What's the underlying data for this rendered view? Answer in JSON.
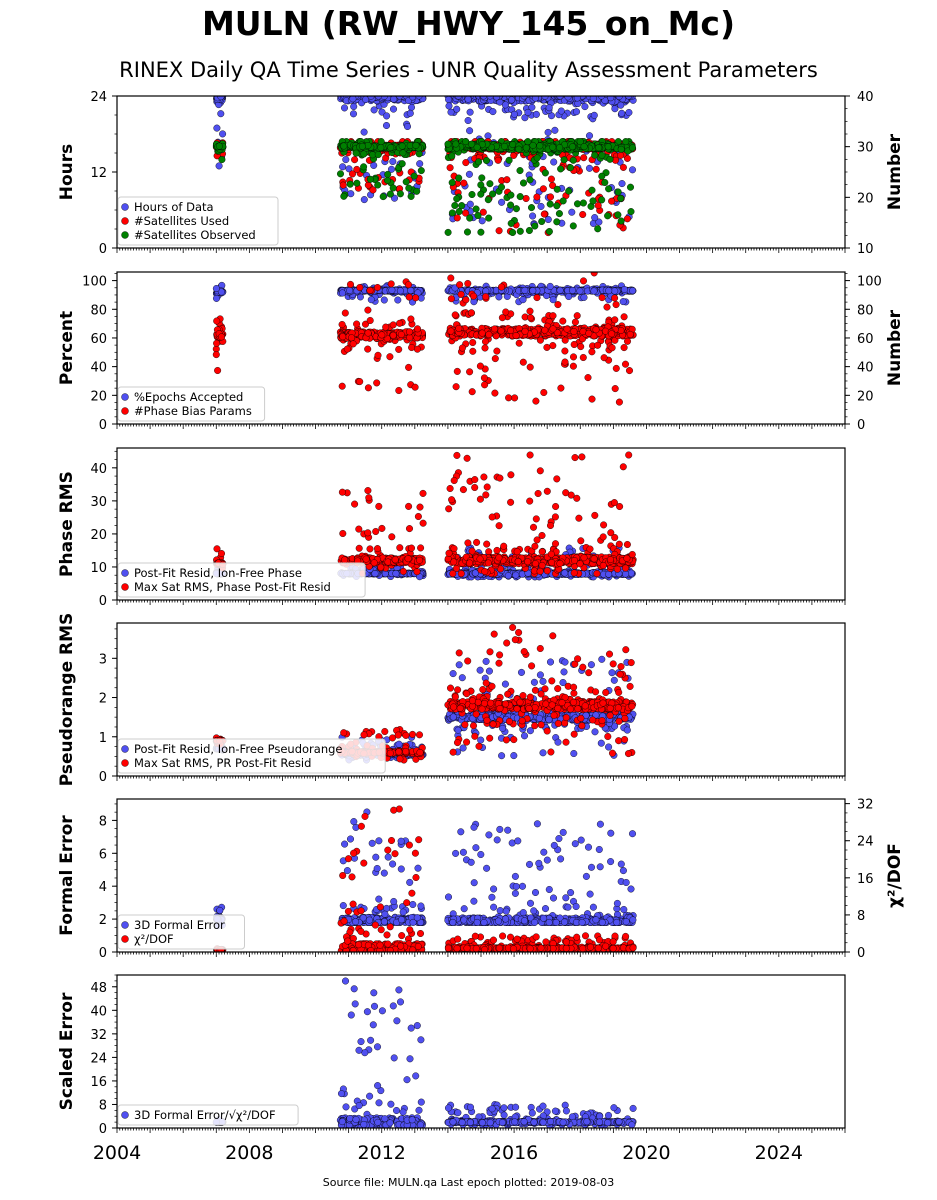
{
  "header": {
    "title": "MULN (RW_HWY_145_on_Mc)",
    "subtitle": "RINEX Daily QA Time Series - UNR Quality Assessment Parameters"
  },
  "footer": {
    "source_note": "Source file: MULN.qa Last epoch plotted: 2019-08-03"
  },
  "colors": {
    "blue": "#5050f0",
    "red": "#ff0000",
    "green": "#008000"
  },
  "chart_data": [
    {
      "type": "scatter",
      "panel": "hours",
      "ylabel": "Hours",
      "y2label": "Number",
      "ylim": [
        0,
        24
      ],
      "yticks": [
        0,
        12,
        24
      ],
      "y2lim": [
        10,
        40
      ],
      "y2ticks": [
        10,
        20,
        30,
        40
      ],
      "xlim": [
        2004,
        2026
      ],
      "legend_position": "lower-left",
      "series": [
        {
          "name": "Hours of Data",
          "color": "#5050f0",
          "axis": "left",
          "segments": [
            {
              "x": [
                2007.0,
                2007.2
              ],
              "y": [
                12,
                24
              ],
              "mode": 23.6
            },
            {
              "x": [
                2010.75,
                2013.25
              ],
              "y": [
                5.5,
                24
              ],
              "mode": 23.8
            },
            {
              "x": [
                2014.0,
                2019.6
              ],
              "y": [
                3.5,
                24
              ],
              "mode": 23.8
            }
          ]
        },
        {
          "name": "#Satellites Used",
          "color": "#ff0000",
          "axis": "right",
          "segments": [
            {
              "x": [
                2007.0,
                2007.2
              ],
              "y": [
                28,
                31
              ],
              "mode": 30
            },
            {
              "x": [
                2010.75,
                2013.25
              ],
              "y": [
                21,
                31
              ],
              "mode": 30
            },
            {
              "x": [
                2014.0,
                2019.6
              ],
              "y": [
                13,
                31
              ],
              "mode": 30
            }
          ]
        },
        {
          "name": "#Satellites Observed",
          "color": "#008000",
          "axis": "right",
          "segments": [
            {
              "x": [
                2007.0,
                2007.2
              ],
              "y": [
                27,
                31
              ],
              "mode": 30
            },
            {
              "x": [
                2010.75,
                2013.25
              ],
              "y": [
                20,
                31
              ],
              "mode": 30
            },
            {
              "x": [
                2014.0,
                2019.6
              ],
              "y": [
                13,
                31
              ],
              "mode": 30
            }
          ]
        }
      ]
    },
    {
      "type": "scatter",
      "panel": "percent",
      "ylabel": "Percent",
      "y2label": "Number",
      "ylim": [
        0,
        106
      ],
      "yticks": [
        0,
        20,
        40,
        60,
        80,
        100
      ],
      "y2lim": [
        0,
        106
      ],
      "y2ticks": [
        0,
        20,
        40,
        60,
        80,
        100
      ],
      "xlim": [
        2004,
        2026
      ],
      "legend_position": "lower-left",
      "series": [
        {
          "name": "%Epochs Accepted",
          "color": "#5050f0",
          "axis": "left",
          "segments": [
            {
              "x": [
                2007.0,
                2007.2
              ],
              "y": [
                86,
                97
              ],
              "mode": 92
            },
            {
              "x": [
                2010.75,
                2013.25
              ],
              "y": [
                85,
                97
              ],
              "mode": 93
            },
            {
              "x": [
                2014.0,
                2019.6
              ],
              "y": [
                85,
                97
              ],
              "mode": 93
            }
          ]
        },
        {
          "name": "#Phase Bias Params",
          "color": "#ff0000",
          "axis": "right",
          "segments": [
            {
              "x": [
                2007.0,
                2007.2
              ],
              "y": [
                35,
                80
              ],
              "mode": 62
            },
            {
              "x": [
                2010.75,
                2013.25
              ],
              "y": [
                22,
                100
              ],
              "mode": 62
            },
            {
              "x": [
                2014.0,
                2019.6
              ],
              "y": [
                15,
                106
              ],
              "mode": 64
            }
          ]
        }
      ]
    },
    {
      "type": "scatter",
      "panel": "phase-rms",
      "ylabel": "Phase RMS",
      "ylim": [
        0,
        46
      ],
      "yticks": [
        0,
        10,
        20,
        30,
        40
      ],
      "xlim": [
        2004,
        2026
      ],
      "legend_position": "lower-left",
      "series": [
        {
          "name": "Post-Fit Resid, Ion-Free Phase",
          "color": "#5050f0",
          "axis": "left",
          "segments": [
            {
              "x": [
                2007.0,
                2007.2
              ],
              "y": [
                7,
                10
              ],
              "mode": 8
            },
            {
              "x": [
                2010.75,
                2013.25
              ],
              "y": [
                7,
                10
              ],
              "mode": 8
            },
            {
              "x": [
                2014.0,
                2019.6
              ],
              "y": [
                7,
                16
              ],
              "mode": 8
            }
          ]
        },
        {
          "name": "Max Sat RMS, Phase Post-Fit Resid",
          "color": "#ff0000",
          "axis": "left",
          "segments": [
            {
              "x": [
                2007.0,
                2007.2
              ],
              "y": [
                8,
                16
              ],
              "mode": 11
            },
            {
              "x": [
                2010.75,
                2013.25
              ],
              "y": [
                8,
                34
              ],
              "mode": 12
            },
            {
              "x": [
                2014.0,
                2019.6
              ],
              "y": [
                8,
                44
              ],
              "mode": 12
            }
          ]
        }
      ]
    },
    {
      "type": "scatter",
      "panel": "pseudorange-rms",
      "ylabel": "Pseudorange RMS",
      "ylim": [
        0,
        3.9
      ],
      "yticks": [
        0,
        1,
        2,
        3
      ],
      "xlim": [
        2004,
        2026
      ],
      "legend_position": "lower-left",
      "series": [
        {
          "name": "Post-Fit Resid, Ion-Free Pseudorange",
          "color": "#5050f0",
          "axis": "left",
          "segments": [
            {
              "x": [
                2007.0,
                2007.2
              ],
              "y": [
                0.5,
                0.9
              ],
              "mode": 0.7
            },
            {
              "x": [
                2010.75,
                2013.25
              ],
              "y": [
                0.4,
                1.0
              ],
              "mode": 0.55
            },
            {
              "x": [
                2014.0,
                2019.6
              ],
              "y": [
                0.5,
                3.0
              ],
              "mode": 1.5
            }
          ]
        },
        {
          "name": "Max Sat RMS, PR Post-Fit Resid",
          "color": "#ff0000",
          "axis": "left",
          "segments": [
            {
              "x": [
                2007.0,
                2007.2
              ],
              "y": [
                0.8,
                1.0
              ],
              "mode": 0.9
            },
            {
              "x": [
                2010.75,
                2013.25
              ],
              "y": [
                0.4,
                1.2
              ],
              "mode": 0.6
            },
            {
              "x": [
                2014.0,
                2019.6
              ],
              "y": [
                0.5,
                3.8
              ],
              "mode": 1.8
            }
          ]
        }
      ]
    },
    {
      "type": "scatter",
      "panel": "formal-error",
      "ylabel": "Formal Error",
      "y2label": "χ²/DOF",
      "ylim": [
        0,
        9.3
      ],
      "yticks": [
        0,
        2,
        4,
        6,
        8
      ],
      "y2lim": [
        0,
        33
      ],
      "y2ticks": [
        0,
        8,
        16,
        24,
        32
      ],
      "xlim": [
        2004,
        2026
      ],
      "legend_position": "lower-left",
      "series": [
        {
          "name": "3D Formal Error",
          "color": "#5050f0",
          "axis": "left",
          "segments": [
            {
              "x": [
                2007.0,
                2007.2
              ],
              "y": [
                1.5,
                2.8
              ],
              "mode": 2.0
            },
            {
              "x": [
                2010.75,
                2013.25
              ],
              "y": [
                1.8,
                8.8
              ],
              "mode": 1.9
            },
            {
              "x": [
                2014.0,
                2019.6
              ],
              "y": [
                1.8,
                7.8
              ],
              "mode": 1.9
            }
          ]
        },
        {
          "name": "χ²/DOF",
          "color": "#ff0000",
          "axis": "right",
          "segments": [
            {
              "x": [
                2007.0,
                2007.2
              ],
              "y": [
                0.3,
                0.8
              ],
              "mode": 0.5
            },
            {
              "x": [
                2010.75,
                2013.25
              ],
              "y": [
                0.3,
                31
              ],
              "mode": 0.9
            },
            {
              "x": [
                2014.0,
                2019.6
              ],
              "y": [
                0.3,
                3.5
              ],
              "mode": 0.8
            }
          ]
        }
      ]
    },
    {
      "type": "scatter",
      "panel": "scaled-error",
      "ylabel": "Scaled Error",
      "ylim": [
        0,
        52
      ],
      "yticks": [
        0,
        8,
        16,
        24,
        32,
        40,
        48
      ],
      "xlim": [
        2004,
        2026
      ],
      "xticks": [
        2004,
        2008,
        2012,
        2016,
        2020,
        2024
      ],
      "legend_position": "lower-left",
      "series": [
        {
          "name": "3D Formal Error/√χ²/DOF",
          "color": "#5050f0",
          "axis": "left",
          "segments": [
            {
              "x": [
                2007.0,
                2007.2
              ],
              "y": [
                1.5,
                3
              ],
              "mode": 2
            },
            {
              "x": [
                2010.75,
                2013.25
              ],
              "y": [
                1,
                50
              ],
              "mode": 2
            },
            {
              "x": [
                2014.0,
                2019.6
              ],
              "y": [
                1,
                8
              ],
              "mode": 2
            }
          ]
        }
      ]
    }
  ]
}
